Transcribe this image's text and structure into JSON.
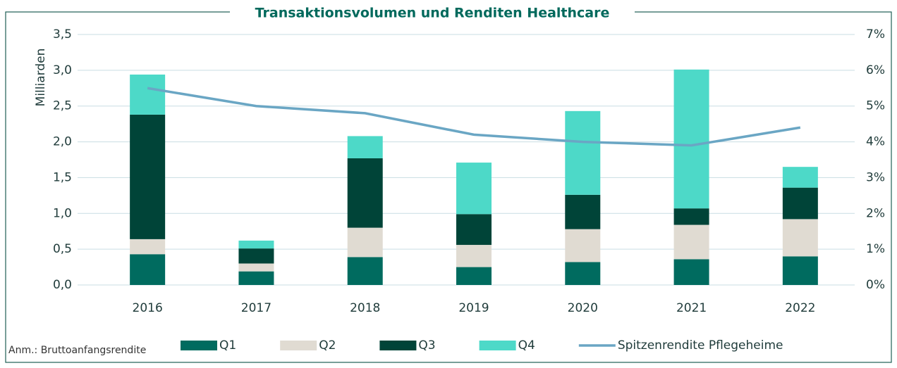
{
  "chart_data": {
    "type": "bar",
    "title": "Transaktionsvolumen und Renditen Healthcare",
    "y_label": "Milliarden",
    "annotation": "Anm.: Bruttoanfangsrendite",
    "stacked": true,
    "categories": [
      "2016",
      "2017",
      "2018",
      "2019",
      "2020",
      "2021",
      "2022"
    ],
    "series": [
      {
        "name": "Q1",
        "color": "#006b5f",
        "values": [
          0.43,
          0.19,
          0.39,
          0.25,
          0.32,
          0.36,
          0.4
        ]
      },
      {
        "name": "Q2",
        "color": "#e0dbd2",
        "values": [
          0.21,
          0.11,
          0.41,
          0.31,
          0.46,
          0.48,
          0.52
        ]
      },
      {
        "name": "Q3",
        "color": "#004438",
        "values": [
          1.74,
          0.21,
          0.97,
          0.43,
          0.48,
          0.23,
          0.44
        ]
      },
      {
        "name": "Q4",
        "color": "#4dd9c8",
        "values": [
          0.56,
          0.11,
          0.31,
          0.72,
          1.17,
          1.94,
          0.29
        ]
      },
      {
        "name": "Spitzenrendite Pflegeheime",
        "color": "#6aa6c4",
        "type": "line",
        "axis": "y2",
        "values": [
          5.5,
          5.0,
          4.8,
          4.2,
          4.0,
          3.9,
          4.4
        ]
      }
    ],
    "ylim": [
      0,
      3.5
    ],
    "yticks": [
      {
        "value": 0,
        "label": "0,0"
      },
      {
        "value": 0.5,
        "label": "0,5"
      },
      {
        "value": 1,
        "label": "1,0"
      },
      {
        "value": 1.5,
        "label": "1,5"
      },
      {
        "value": 2,
        "label": "2,0"
      },
      {
        "value": 2.5,
        "label": "2,5"
      },
      {
        "value": 3,
        "label": "3,0"
      },
      {
        "value": 3.5,
        "label": "3,5"
      }
    ],
    "y2lim": [
      0,
      7
    ],
    "y2ticks": [
      {
        "value": 0,
        "label": "0%"
      },
      {
        "value": 1,
        "label": "1%"
      },
      {
        "value": 2,
        "label": "2%"
      },
      {
        "value": 3,
        "label": "3%"
      },
      {
        "value": 4,
        "label": "4%"
      },
      {
        "value": 5,
        "label": "5%"
      },
      {
        "value": 6,
        "label": "6%"
      },
      {
        "value": 7,
        "label": "7%"
      }
    ],
    "grid": true,
    "legend": "bottom"
  }
}
